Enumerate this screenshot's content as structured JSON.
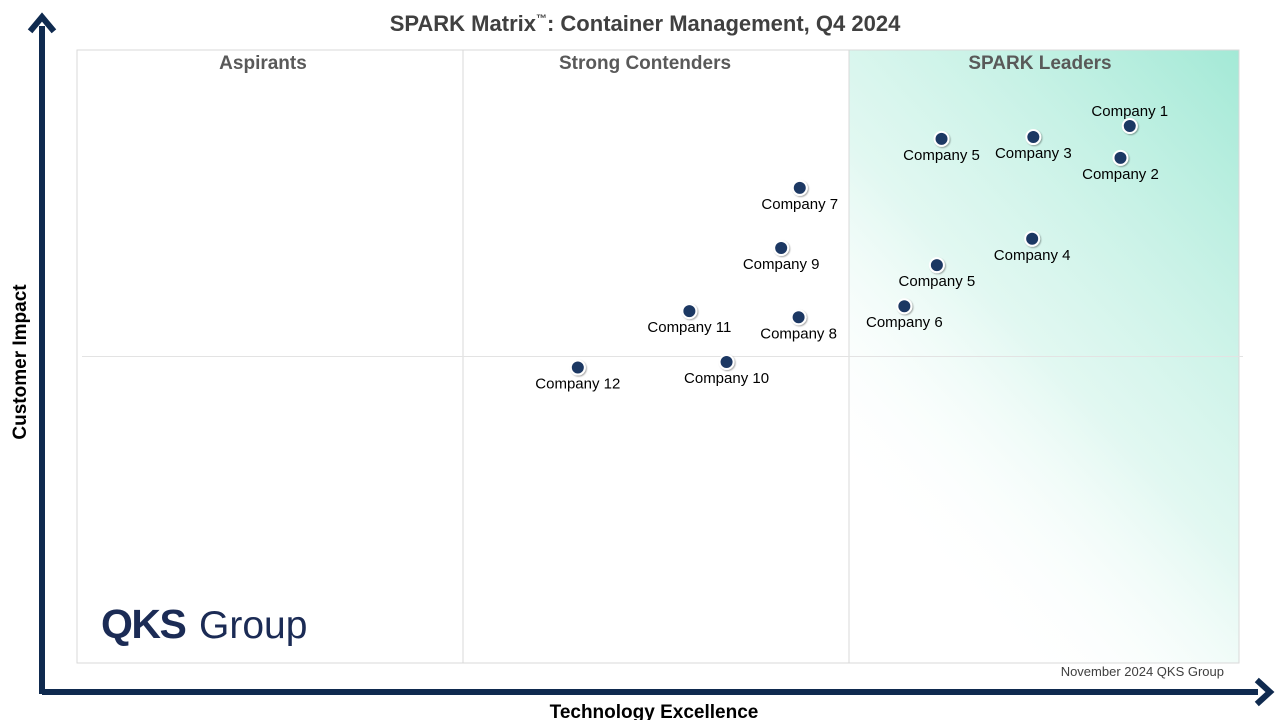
{
  "chart_data": {
    "type": "scatter",
    "title": "SPARK Matrix",
    "title_tm": "™",
    "title_rest": ": Container Management, Q4 2024",
    "xlabel": "Technology Excellence",
    "ylabel": "Customer Impact",
    "xlim": [
      0,
      100
    ],
    "ylim": [
      0,
      100
    ],
    "quadrants": [
      "Aspirants",
      "Strong Contenders",
      "SPARK Leaders"
    ],
    "points": [
      {
        "label": "Company 1",
        "x": 90.6,
        "y": 87.6,
        "label_pos": "above"
      },
      {
        "label": "Company 5",
        "x": 74.4,
        "y": 85.5,
        "label_pos": "below"
      },
      {
        "label": "Company 3",
        "x": 82.3,
        "y": 85.8,
        "label_pos": "below"
      },
      {
        "label": "Company 2",
        "x": 89.8,
        "y": 82.4,
        "label_pos": "below"
      },
      {
        "label": "Company 7",
        "x": 62.2,
        "y": 77.5,
        "label_pos": "below"
      },
      {
        "label": "Company 4",
        "x": 82.2,
        "y": 69.2,
        "label_pos": "below"
      },
      {
        "label": "Company 9",
        "x": 60.6,
        "y": 67.7,
        "label_pos": "below"
      },
      {
        "label": "Company 5",
        "x": 74.0,
        "y": 64.9,
        "label_pos": "below"
      },
      {
        "label": "Company 6",
        "x": 71.2,
        "y": 58.2,
        "label_pos": "below"
      },
      {
        "label": "Company 11",
        "x": 52.7,
        "y": 57.4,
        "label_pos": "below"
      },
      {
        "label": "Company 8",
        "x": 62.1,
        "y": 56.4,
        "label_pos": "below"
      },
      {
        "label": "Company 10",
        "x": 55.9,
        "y": 49.1,
        "label_pos": "below"
      },
      {
        "label": "Company 12",
        "x": 43.1,
        "y": 48.2,
        "label_pos": "below"
      }
    ]
  },
  "brand": {
    "logo_bold": "QKS",
    "logo_light": "Group"
  },
  "footer": {
    "note": "November 2024 QKS Group"
  },
  "colors": {
    "point_fill": "#1f3864",
    "axis": "#0f2a4f",
    "leaders_gradient": "#a3e9d6",
    "grid": "#d9d9d9"
  }
}
